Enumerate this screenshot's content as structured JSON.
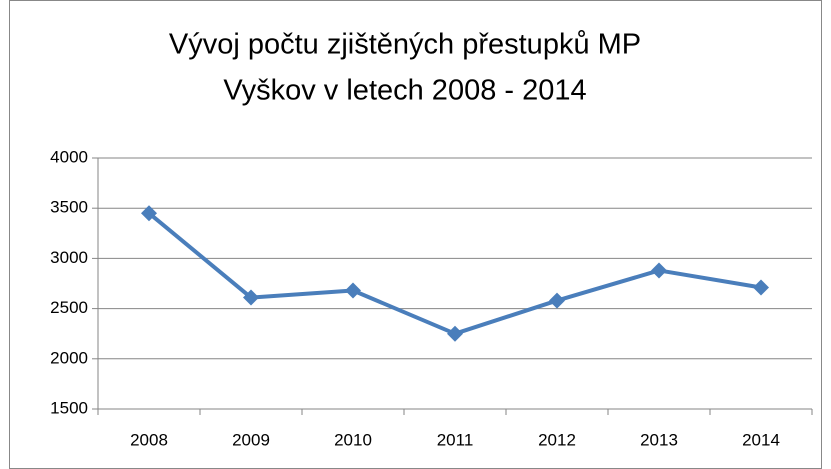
{
  "chart_data": {
    "type": "line",
    "title": [
      "Vývoj počtu zjištěných přestupků MP",
      "Vyškov v letech 2008 - 2014"
    ],
    "categories": [
      "2008",
      "2009",
      "2010",
      "2011",
      "2012",
      "2013",
      "2014"
    ],
    "series": [
      {
        "color": "#4a7ebb",
        "values": [
          3450,
          2610,
          2680,
          2250,
          2580,
          2880,
          2710
        ]
      }
    ],
    "ylim": [
      1500,
      4000
    ],
    "yticks": [
      1500,
      2000,
      2500,
      3000,
      3500,
      4000
    ],
    "grid": true
  }
}
